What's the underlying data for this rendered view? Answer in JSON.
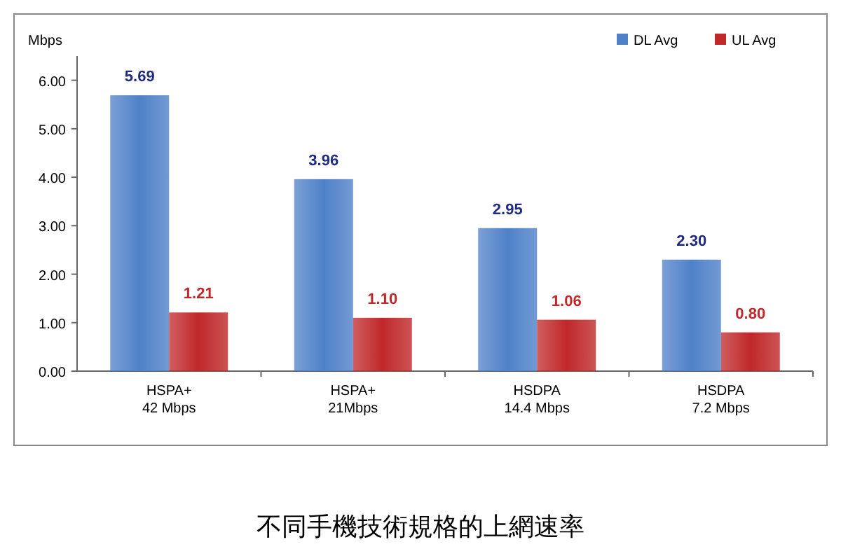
{
  "chart_data": {
    "type": "bar",
    "title": "不同手機技術規格的上網速率",
    "ylabel": "Mbps",
    "categories": [
      "HSPA+\n42 Mbps",
      "HSPA+\n21Mbps",
      "HSDPA\n14.4 Mbps",
      "HSDPA\n7.2 Mbps"
    ],
    "series": [
      {
        "name": "DL Avg",
        "color": "#4f81c8",
        "values": [
          5.69,
          3.96,
          2.95,
          2.3
        ],
        "value_labels": [
          "5.69",
          "3.96",
          "2.95",
          "2.30"
        ]
      },
      {
        "name": "UL Avg",
        "color": "#c0282a",
        "values": [
          1.21,
          1.1,
          1.06,
          0.8
        ],
        "value_labels": [
          "1.21",
          "1.10",
          "1.06",
          "0.80"
        ]
      }
    ],
    "ylim": [
      0,
      6.5
    ],
    "yticks": [
      {
        "value": 0,
        "label": "0.00"
      },
      {
        "value": 1,
        "label": "1.00"
      },
      {
        "value": 2,
        "label": "2.00"
      },
      {
        "value": 3,
        "label": "3.00"
      },
      {
        "value": 4,
        "label": "4.00"
      },
      {
        "value": 5,
        "label": "5.00"
      },
      {
        "value": 6,
        "label": "6.00"
      }
    ],
    "grid": false,
    "legend": "top right"
  }
}
